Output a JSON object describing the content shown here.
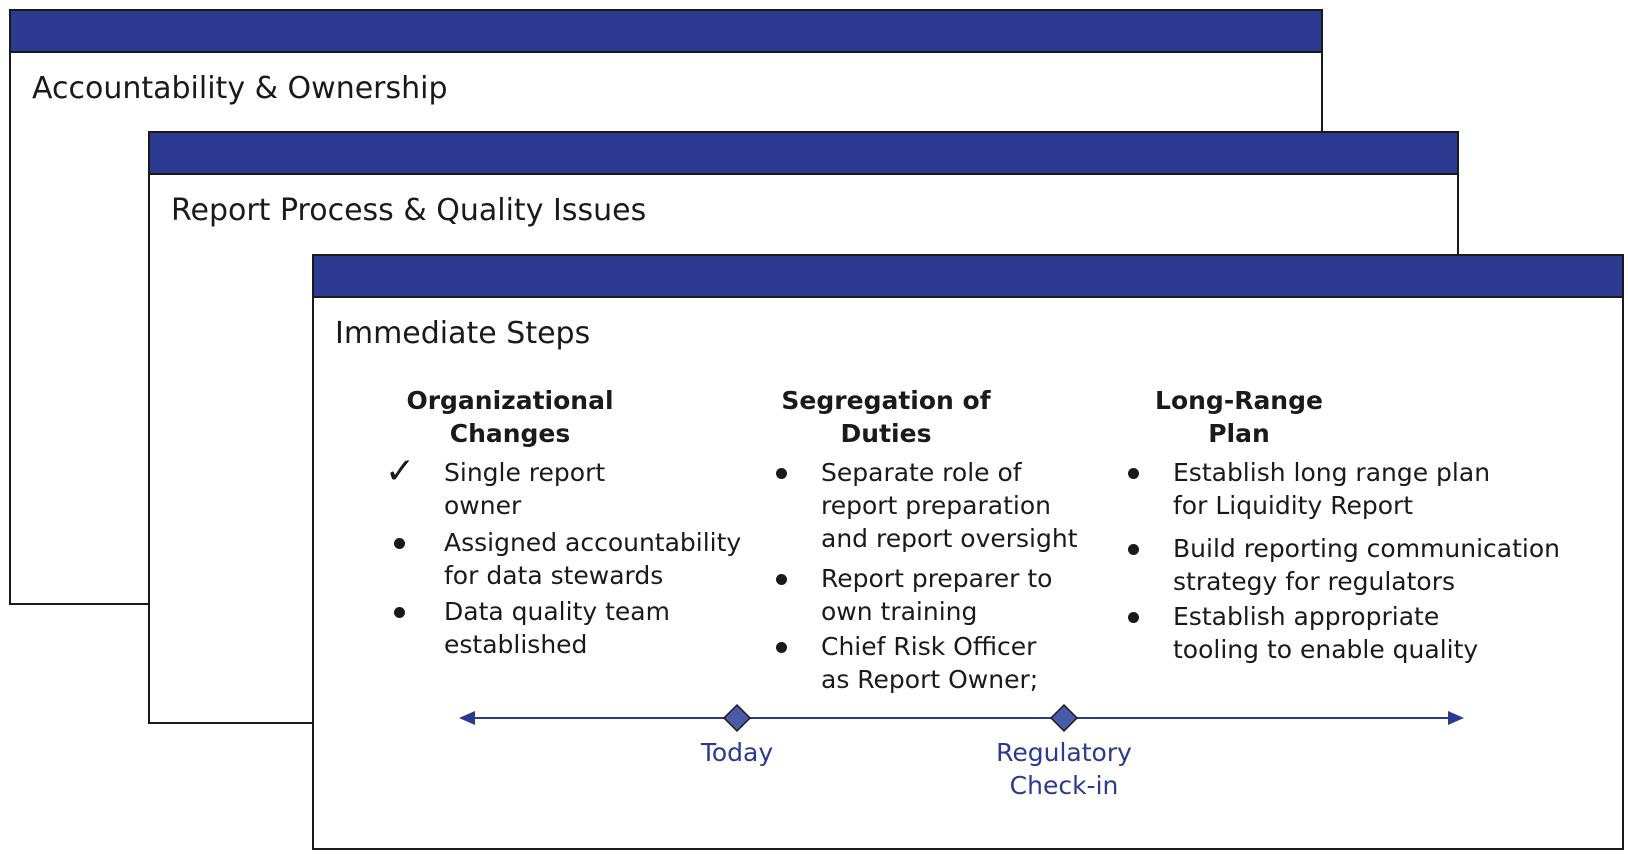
{
  "cards": {
    "back": {
      "title": "Accountability & Ownership"
    },
    "middle": {
      "title": "Report Process & Quality Issues"
    },
    "front": {
      "title": "Immediate Steps"
    }
  },
  "columns": [
    {
      "heading": [
        "Organizational",
        "Changes"
      ],
      "items": [
        {
          "marker": "check",
          "lines": [
            "Single report",
            "owner"
          ]
        },
        {
          "marker": "bullet",
          "lines": [
            "Assigned accountability",
            "for data stewards"
          ]
        },
        {
          "marker": "bullet",
          "lines": [
            "Data quality team",
            "established"
          ]
        }
      ]
    },
    {
      "heading": [
        "Segregation of",
        "Duties"
      ],
      "items": [
        {
          "marker": "bullet",
          "lines": [
            "Separate role of",
            "report preparation",
            "and report oversight"
          ]
        },
        {
          "marker": "bullet",
          "lines": [
            "Report preparer to",
            "own training"
          ]
        },
        {
          "marker": "bullet",
          "lines": [
            "Chief Risk Officer",
            "as Report Owner;"
          ]
        }
      ]
    },
    {
      "heading": [
        "Long-Range",
        "Plan"
      ],
      "items": [
        {
          "marker": "bullet",
          "lines": [
            "Establish long range plan",
            "for Liquidity Report"
          ]
        },
        {
          "marker": "bullet",
          "lines": [
            "Build reporting communication",
            "strategy for regulators"
          ]
        },
        {
          "marker": "bullet",
          "lines": [
            "Establish appropriate",
            "tooling to enable quality"
          ]
        }
      ]
    }
  ],
  "timeline": {
    "milestones": [
      {
        "label": [
          "Today"
        ]
      },
      {
        "label": [
          "Regulatory",
          "Check-in"
        ]
      }
    ]
  },
  "colors": {
    "header_bar": "#2b3990",
    "timeline": "#2b3990",
    "milestone_fill": "#4a5aa8",
    "border": "#1a1a1a"
  }
}
